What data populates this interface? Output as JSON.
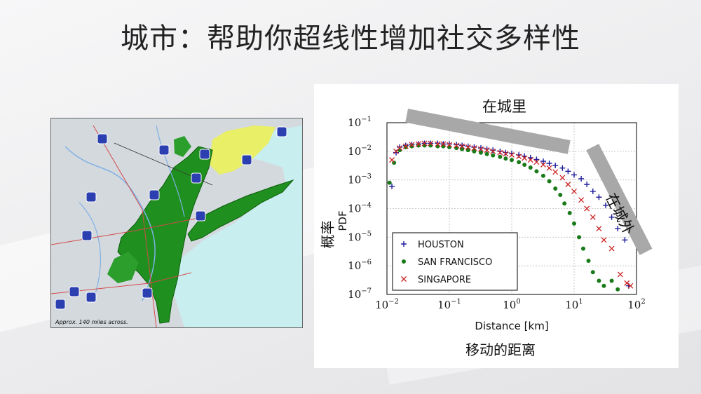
{
  "slide": {
    "title": "城市：帮助你超线性增加社交多样性"
  },
  "map": {
    "caption": "Approx. 140 miles across.",
    "highway_shields": [
      "84",
      "87",
      "684",
      "91",
      "95",
      "287",
      "287",
      "80",
      "287",
      "295",
      "78",
      "78",
      "276",
      "95",
      "195",
      "9"
    ]
  },
  "annotations": {
    "in_city": "在城里",
    "outside_city": "在城外",
    "ylabel_cn": "概率",
    "xlabel_cn": "移动的距离"
  },
  "chart_data": {
    "type": "scatter",
    "xlabel": "Distance [km]",
    "ylabel": "PDF",
    "xscale": "log",
    "yscale": "log",
    "xlim": [
      0.01,
      100
    ],
    "ylim": [
      1e-07,
      0.1
    ],
    "x_ticks": [
      {
        "v": -2,
        "label": "10",
        "exp": "−2"
      },
      {
        "v": -1,
        "label": "10",
        "exp": "−1"
      },
      {
        "v": 0,
        "label": "10",
        "exp": "0"
      },
      {
        "v": 1,
        "label": "10",
        "exp": "1"
      },
      {
        "v": 2,
        "label": "10",
        "exp": "2"
      }
    ],
    "y_ticks": [
      {
        "v": -1,
        "label": "10",
        "exp": "−1"
      },
      {
        "v": -2,
        "label": "10",
        "exp": "−2"
      },
      {
        "v": -3,
        "label": "10",
        "exp": "−3"
      },
      {
        "v": -4,
        "label": "10",
        "exp": "−4"
      },
      {
        "v": -5,
        "label": "10",
        "exp": "−5"
      },
      {
        "v": -6,
        "label": "10",
        "exp": "−6"
      },
      {
        "v": -7,
        "label": "10",
        "exp": "−7"
      }
    ],
    "grid": true,
    "legend_position": "bottom-left",
    "series": [
      {
        "name": "HOUSTON",
        "marker": "plus",
        "color": "#1a1a9a",
        "points": [
          [
            0.012,
            0.0006
          ],
          [
            0.014,
            0.009
          ],
          [
            0.016,
            0.014
          ],
          [
            0.02,
            0.016
          ],
          [
            0.025,
            0.017
          ],
          [
            0.032,
            0.018
          ],
          [
            0.04,
            0.019
          ],
          [
            0.05,
            0.019
          ],
          [
            0.065,
            0.019
          ],
          [
            0.08,
            0.018
          ],
          [
            0.1,
            0.018
          ],
          [
            0.13,
            0.017
          ],
          [
            0.16,
            0.016
          ],
          [
            0.2,
            0.015
          ],
          [
            0.25,
            0.014
          ],
          [
            0.32,
            0.013
          ],
          [
            0.4,
            0.012
          ],
          [
            0.5,
            0.011
          ],
          [
            0.65,
            0.01
          ],
          [
            0.8,
            0.009
          ],
          [
            1.0,
            0.0085
          ],
          [
            1.3,
            0.0075
          ],
          [
            1.6,
            0.0068
          ],
          [
            2.0,
            0.006
          ],
          [
            2.5,
            0.0052
          ],
          [
            3.2,
            0.0045
          ],
          [
            4.0,
            0.0038
          ],
          [
            5.0,
            0.0032
          ],
          [
            6.5,
            0.0026
          ],
          [
            8.0,
            0.002
          ],
          [
            10,
            0.0015
          ],
          [
            13,
            0.0011
          ],
          [
            16,
            0.0007
          ],
          [
            20,
            0.0004
          ],
          [
            25,
            0.00025
          ],
          [
            32,
            0.00013
          ],
          [
            40,
            5e-05
          ],
          [
            50,
            2e-05
          ],
          [
            65,
            8e-06
          ],
          [
            75,
            2e-07
          ]
        ]
      },
      {
        "name": "SAN FRANCISCO",
        "marker": "dot",
        "color": "#1a7a1a",
        "points": [
          [
            0.011,
            0.0008
          ],
          [
            0.013,
            0.004
          ],
          [
            0.016,
            0.011
          ],
          [
            0.02,
            0.014
          ],
          [
            0.025,
            0.015
          ],
          [
            0.032,
            0.016
          ],
          [
            0.04,
            0.016
          ],
          [
            0.05,
            0.016
          ],
          [
            0.065,
            0.015
          ],
          [
            0.08,
            0.015
          ],
          [
            0.1,
            0.014
          ],
          [
            0.13,
            0.013
          ],
          [
            0.16,
            0.012
          ],
          [
            0.2,
            0.011
          ],
          [
            0.25,
            0.01
          ],
          [
            0.32,
            0.009
          ],
          [
            0.4,
            0.008
          ],
          [
            0.5,
            0.0072
          ],
          [
            0.65,
            0.0064
          ],
          [
            0.8,
            0.0056
          ],
          [
            1.0,
            0.005
          ],
          [
            1.3,
            0.0042
          ],
          [
            1.6,
            0.0034
          ],
          [
            2.0,
            0.0027
          ],
          [
            2.5,
            0.002
          ],
          [
            3.2,
            0.0014
          ],
          [
            4.0,
            0.0009
          ],
          [
            5.0,
            0.0005
          ],
          [
            6.0,
            0.0003
          ],
          [
            7.0,
            0.00015
          ],
          [
            8.5,
            7e-05
          ],
          [
            10,
            3e-05
          ],
          [
            12,
            1e-05
          ],
          [
            14,
            4e-06
          ],
          [
            17,
            1.5e-06
          ],
          [
            20,
            6e-07
          ],
          [
            25,
            3e-07
          ],
          [
            30,
            2e-07
          ],
          [
            40,
            3e-07
          ],
          [
            50,
            1.5e-07
          ]
        ]
      },
      {
        "name": "SINGAPORE",
        "marker": "cross",
        "color": "#cc2222",
        "points": [
          [
            0.012,
            0.005
          ],
          [
            0.014,
            0.01
          ],
          [
            0.016,
            0.013
          ],
          [
            0.02,
            0.015
          ],
          [
            0.025,
            0.017
          ],
          [
            0.032,
            0.018
          ],
          [
            0.04,
            0.019
          ],
          [
            0.05,
            0.019
          ],
          [
            0.065,
            0.018
          ],
          [
            0.08,
            0.018
          ],
          [
            0.1,
            0.017
          ],
          [
            0.13,
            0.016
          ],
          [
            0.16,
            0.015
          ],
          [
            0.2,
            0.014
          ],
          [
            0.25,
            0.013
          ],
          [
            0.32,
            0.012
          ],
          [
            0.4,
            0.011
          ],
          [
            0.5,
            0.01
          ],
          [
            0.65,
            0.009
          ],
          [
            0.8,
            0.0082
          ],
          [
            1.0,
            0.0075
          ],
          [
            1.3,
            0.0066
          ],
          [
            1.6,
            0.0058
          ],
          [
            2.0,
            0.005
          ],
          [
            2.5,
            0.0042
          ],
          [
            3.2,
            0.0034
          ],
          [
            4.0,
            0.0026
          ],
          [
            5.0,
            0.0019
          ],
          [
            6.5,
            0.0012
          ],
          [
            8.0,
            0.0007
          ],
          [
            10,
            0.0004
          ],
          [
            13,
            0.0002
          ],
          [
            16,
            0.0001
          ],
          [
            20,
            5e-05
          ],
          [
            25,
            2e-05
          ],
          [
            30,
            8e-06
          ],
          [
            40,
            4e-06
          ],
          [
            55,
            5e-07
          ],
          [
            70,
            2.5e-07
          ],
          [
            80,
            2e-07
          ]
        ]
      }
    ]
  }
}
